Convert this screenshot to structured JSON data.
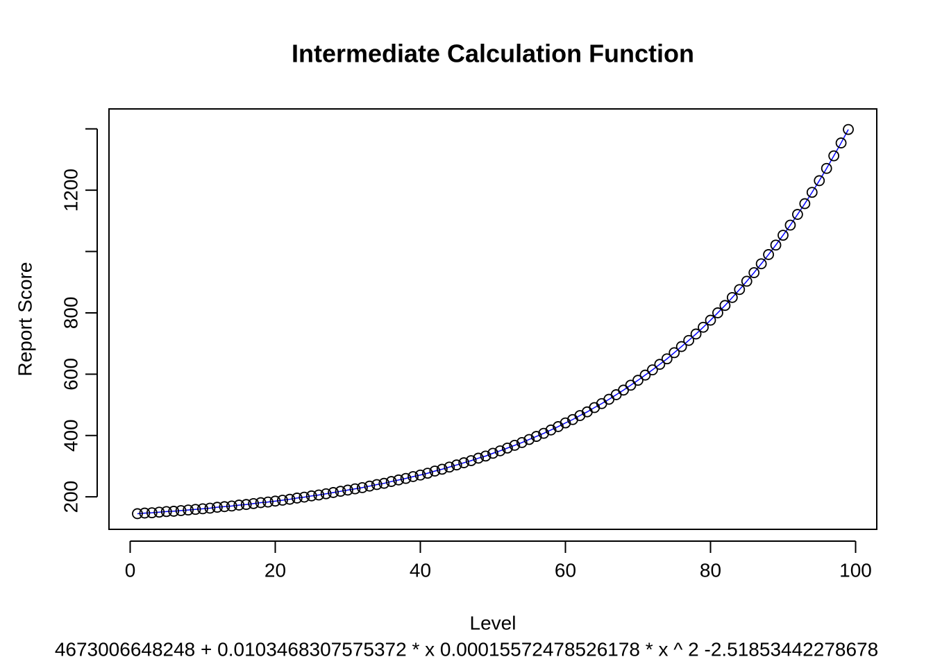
{
  "chart_data": {
    "type": "line",
    "title": "Intermediate Calculation Function",
    "x_label": "Level",
    "y_label": "Report Score",
    "caption": "4673006648248 + 0.0103468307575372 * x 0.00015572478526178 * x ^ 2 -2.51853442278678",
    "x": [
      1,
      2,
      3,
      4,
      5,
      6,
      7,
      8,
      9,
      10,
      11,
      12,
      13,
      14,
      15,
      16,
      17,
      18,
      19,
      20,
      21,
      22,
      23,
      24,
      25,
      26,
      27,
      28,
      29,
      30,
      31,
      32,
      33,
      34,
      35,
      36,
      37,
      38,
      39,
      40,
      41,
      42,
      43,
      44,
      45,
      46,
      47,
      48,
      49,
      50,
      51,
      52,
      53,
      54,
      55,
      56,
      57,
      58,
      59,
      60,
      61,
      62,
      63,
      64,
      65,
      66,
      67,
      68,
      69,
      70,
      71,
      72,
      73,
      74,
      75,
      76,
      77,
      78,
      79,
      80,
      81,
      82,
      83,
      84,
      85,
      86,
      87,
      88,
      89,
      90,
      91,
      92,
      93,
      94,
      95,
      96,
      97,
      98,
      99
    ],
    "series": [
      {
        "color": "#0000ff",
        "marker_color": "#000000",
        "values": [
          145,
          147,
          148,
          150,
          152,
          153,
          155,
          157,
          159,
          161,
          163,
          166,
          168,
          170,
          173,
          175,
          178,
          181,
          183,
          186,
          189,
          192,
          196,
          199,
          203,
          206,
          210,
          214,
          218,
          222,
          226,
          230,
          235,
          240,
          244,
          250,
          255,
          260,
          266,
          271,
          277,
          284,
          290,
          297,
          304,
          311,
          318,
          326,
          333,
          342,
          350,
          359,
          368,
          377,
          387,
          397,
          407,
          418,
          429,
          441,
          452,
          465,
          477,
          491,
          504,
          518,
          533,
          548,
          564,
          580,
          597,
          614,
          632,
          650,
          670,
          690,
          710,
          731,
          753,
          776,
          800,
          824,
          850,
          876,
          903,
          931,
          960,
          990,
          1021,
          1053,
          1086,
          1121,
          1156,
          1193,
          1231,
          1271,
          1312,
          1354,
          1398
        ]
      }
    ],
    "xlim": [
      -2.92,
      102.92
    ],
    "ylim": [
      94,
      1465
    ],
    "xticks": [
      0,
      20,
      40,
      60,
      80,
      100
    ],
    "yticks": [
      200,
      400,
      600,
      800,
      {
        "value": 1000,
        "label": null
      },
      1200,
      {
        "value": 1400,
        "label": null
      }
    ]
  }
}
